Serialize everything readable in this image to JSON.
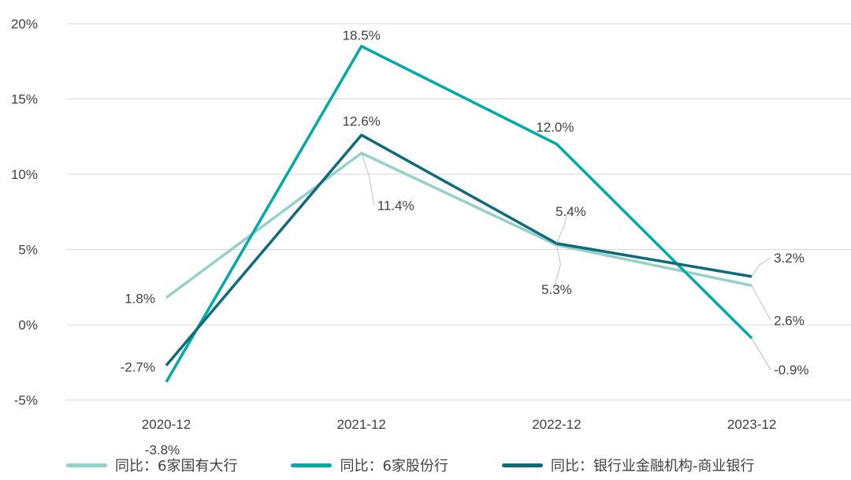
{
  "chart_data": {
    "type": "line",
    "categories": [
      "2020-12",
      "2021-12",
      "2022-12",
      "2023-12"
    ],
    "ylim": [
      -5,
      20
    ],
    "yticks": [
      -5,
      0,
      5,
      10,
      15,
      20
    ],
    "ytick_labels": [
      "-5%",
      "0%",
      "5%",
      "10%",
      "15%",
      "20%"
    ],
    "grid": true,
    "legend_position": "bottom",
    "series": [
      {
        "name": "同比：6家国有大行",
        "values": [
          1.8,
          11.4,
          5.3,
          2.6
        ],
        "labels": [
          "1.8%",
          "11.4%",
          "5.3%",
          "2.6%"
        ],
        "color": "#93d1c9"
      },
      {
        "name": "同比：6家股份行",
        "values": [
          -3.8,
          18.5,
          12.0,
          -0.9
        ],
        "labels": [
          "-3.8%",
          "18.5%",
          "12.0%",
          "-0.9%"
        ],
        "color": "#00aaa5"
      },
      {
        "name": "同比：银行业金融机构-商业银行",
        "values": [
          -2.7,
          12.6,
          5.4,
          3.2
        ],
        "labels": [
          "-2.7%",
          "12.6%",
          "5.4%",
          "3.2%"
        ],
        "color": "#0f6a7b"
      }
    ]
  }
}
